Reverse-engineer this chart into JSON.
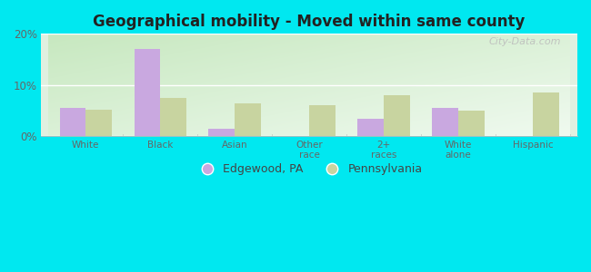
{
  "title": "Geographical mobility - Moved within same county",
  "categories": [
    "White",
    "Black",
    "Asian",
    "Other\nrace",
    "2+\nraces",
    "White\nalone",
    "Hispanic"
  ],
  "edgewood_values": [
    5.5,
    17.0,
    1.5,
    0.0,
    3.5,
    5.5,
    0.0
  ],
  "pennsylvania_values": [
    5.2,
    7.5,
    6.5,
    6.0,
    8.0,
    5.0,
    8.5
  ],
  "edgewood_color": "#c9a8e0",
  "pennsylvania_color": "#c8d4a0",
  "ylim": [
    0,
    20
  ],
  "yticks": [
    0,
    10,
    20
  ],
  "ytick_labels": [
    "0%",
    "10%",
    "20%"
  ],
  "bar_width": 0.35,
  "background_color_fig": "#00e8f0",
  "legend_labels": [
    "Edgewood, PA",
    "Pennsylvania"
  ],
  "watermark": "City-Data.com"
}
